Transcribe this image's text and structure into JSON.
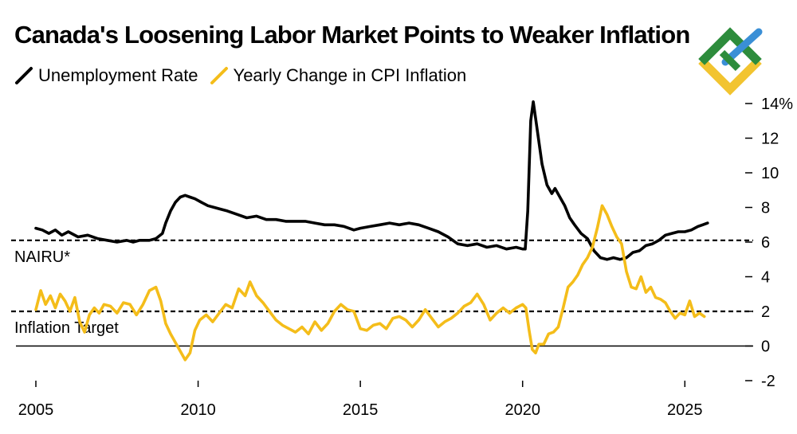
{
  "chart_data": {
    "type": "line",
    "title": "Canada's Loosening Labor Market Points to Weaker Inflation",
    "xlabel": "",
    "ylabel": "",
    "xlim": [
      2005,
      2026
    ],
    "ylim": [
      -2,
      14
    ],
    "x_ticks": [
      "2005",
      "2010",
      "2015",
      "2020",
      "2025"
    ],
    "y_ticks": [
      "14%",
      "12",
      "10",
      "8",
      "6",
      "4",
      "2",
      "0",
      "-2"
    ],
    "legend_position": "top-left",
    "series": [
      {
        "name": "Unemployment Rate",
        "color": "#000000",
        "points": [
          [
            2005.0,
            6.8
          ],
          [
            2005.2,
            6.7
          ],
          [
            2005.4,
            6.5
          ],
          [
            2005.6,
            6.7
          ],
          [
            2005.8,
            6.4
          ],
          [
            2006.0,
            6.6
          ],
          [
            2006.3,
            6.3
          ],
          [
            2006.6,
            6.4
          ],
          [
            2006.9,
            6.2
          ],
          [
            2007.2,
            6.1
          ],
          [
            2007.5,
            6.0
          ],
          [
            2007.8,
            6.1
          ],
          [
            2008.0,
            6.0
          ],
          [
            2008.2,
            6.1
          ],
          [
            2008.5,
            6.1
          ],
          [
            2008.7,
            6.2
          ],
          [
            2008.9,
            6.5
          ],
          [
            2009.0,
            7.1
          ],
          [
            2009.15,
            7.8
          ],
          [
            2009.3,
            8.3
          ],
          [
            2009.45,
            8.6
          ],
          [
            2009.6,
            8.7
          ],
          [
            2009.75,
            8.6
          ],
          [
            2009.9,
            8.5
          ],
          [
            2010.1,
            8.3
          ],
          [
            2010.3,
            8.1
          ],
          [
            2010.5,
            8.0
          ],
          [
            2010.7,
            7.9
          ],
          [
            2010.9,
            7.8
          ],
          [
            2011.2,
            7.6
          ],
          [
            2011.5,
            7.4
          ],
          [
            2011.8,
            7.5
          ],
          [
            2012.1,
            7.3
          ],
          [
            2012.4,
            7.3
          ],
          [
            2012.7,
            7.2
          ],
          [
            2013.0,
            7.2
          ],
          [
            2013.3,
            7.2
          ],
          [
            2013.6,
            7.1
          ],
          [
            2013.9,
            7.0
          ],
          [
            2014.2,
            7.0
          ],
          [
            2014.5,
            6.9
          ],
          [
            2014.8,
            6.7
          ],
          [
            2015.0,
            6.8
          ],
          [
            2015.3,
            6.9
          ],
          [
            2015.6,
            7.0
          ],
          [
            2015.9,
            7.1
          ],
          [
            2016.2,
            7.0
          ],
          [
            2016.5,
            7.1
          ],
          [
            2016.8,
            7.0
          ],
          [
            2017.1,
            6.8
          ],
          [
            2017.4,
            6.6
          ],
          [
            2017.7,
            6.3
          ],
          [
            2018.0,
            5.9
          ],
          [
            2018.3,
            5.8
          ],
          [
            2018.6,
            5.9
          ],
          [
            2018.9,
            5.7
          ],
          [
            2019.2,
            5.8
          ],
          [
            2019.5,
            5.6
          ],
          [
            2019.8,
            5.7
          ],
          [
            2020.0,
            5.6
          ],
          [
            2020.08,
            5.6
          ],
          [
            2020.16,
            7.8
          ],
          [
            2020.25,
            13.0
          ],
          [
            2020.33,
            14.1
          ],
          [
            2020.45,
            12.5
          ],
          [
            2020.6,
            10.5
          ],
          [
            2020.75,
            9.3
          ],
          [
            2020.9,
            8.8
          ],
          [
            2021.0,
            9.1
          ],
          [
            2021.15,
            8.6
          ],
          [
            2021.3,
            8.1
          ],
          [
            2021.45,
            7.4
          ],
          [
            2021.6,
            7.0
          ],
          [
            2021.8,
            6.5
          ],
          [
            2022.0,
            6.2
          ],
          [
            2022.2,
            5.5
          ],
          [
            2022.4,
            5.1
          ],
          [
            2022.6,
            5.0
          ],
          [
            2022.8,
            5.1
          ],
          [
            2023.0,
            5.0
          ],
          [
            2023.2,
            5.1
          ],
          [
            2023.4,
            5.4
          ],
          [
            2023.6,
            5.5
          ],
          [
            2023.8,
            5.8
          ],
          [
            2024.0,
            5.9
          ],
          [
            2024.2,
            6.1
          ],
          [
            2024.4,
            6.4
          ],
          [
            2024.6,
            6.5
          ],
          [
            2024.8,
            6.6
          ],
          [
            2025.0,
            6.6
          ],
          [
            2025.2,
            6.7
          ],
          [
            2025.4,
            6.9
          ],
          [
            2025.55,
            7.0
          ],
          [
            2025.7,
            7.1
          ]
        ]
      },
      {
        "name": "Yearly Change in CPI Inflation",
        "color": "#f4bd1a",
        "points": [
          [
            2005.0,
            2.1
          ],
          [
            2005.15,
            3.2
          ],
          [
            2005.3,
            2.4
          ],
          [
            2005.45,
            2.9
          ],
          [
            2005.6,
            2.2
          ],
          [
            2005.75,
            3.0
          ],
          [
            2005.9,
            2.6
          ],
          [
            2006.05,
            2.0
          ],
          [
            2006.2,
            2.8
          ],
          [
            2006.35,
            1.4
          ],
          [
            2006.5,
            0.8
          ],
          [
            2006.65,
            1.8
          ],
          [
            2006.8,
            2.2
          ],
          [
            2006.95,
            1.9
          ],
          [
            2007.1,
            2.4
          ],
          [
            2007.3,
            2.3
          ],
          [
            2007.5,
            1.9
          ],
          [
            2007.7,
            2.5
          ],
          [
            2007.9,
            2.4
          ],
          [
            2008.1,
            1.8
          ],
          [
            2008.3,
            2.4
          ],
          [
            2008.5,
            3.2
          ],
          [
            2008.7,
            3.4
          ],
          [
            2008.85,
            2.6
          ],
          [
            2009.0,
            1.3
          ],
          [
            2009.15,
            0.7
          ],
          [
            2009.3,
            0.2
          ],
          [
            2009.45,
            -0.3
          ],
          [
            2009.6,
            -0.8
          ],
          [
            2009.75,
            -0.4
          ],
          [
            2009.9,
            0.9
          ],
          [
            2010.05,
            1.5
          ],
          [
            2010.25,
            1.8
          ],
          [
            2010.45,
            1.4
          ],
          [
            2010.65,
            1.9
          ],
          [
            2010.85,
            2.4
          ],
          [
            2011.05,
            2.2
          ],
          [
            2011.25,
            3.3
          ],
          [
            2011.45,
            2.9
          ],
          [
            2011.6,
            3.7
          ],
          [
            2011.8,
            2.9
          ],
          [
            2012.0,
            2.5
          ],
          [
            2012.2,
            2.0
          ],
          [
            2012.4,
            1.5
          ],
          [
            2012.6,
            1.2
          ],
          [
            2012.8,
            1.0
          ],
          [
            2013.0,
            0.8
          ],
          [
            2013.2,
            1.1
          ],
          [
            2013.4,
            0.7
          ],
          [
            2013.6,
            1.4
          ],
          [
            2013.8,
            0.9
          ],
          [
            2014.0,
            1.3
          ],
          [
            2014.2,
            2.0
          ],
          [
            2014.4,
            2.4
          ],
          [
            2014.6,
            2.1
          ],
          [
            2014.8,
            2.0
          ],
          [
            2015.0,
            1.0
          ],
          [
            2015.2,
            0.9
          ],
          [
            2015.4,
            1.2
          ],
          [
            2015.6,
            1.3
          ],
          [
            2015.8,
            1.0
          ],
          [
            2016.0,
            1.6
          ],
          [
            2016.2,
            1.7
          ],
          [
            2016.4,
            1.5
          ],
          [
            2016.6,
            1.1
          ],
          [
            2016.8,
            1.5
          ],
          [
            2017.0,
            2.1
          ],
          [
            2017.2,
            1.6
          ],
          [
            2017.4,
            1.1
          ],
          [
            2017.6,
            1.4
          ],
          [
            2017.8,
            1.6
          ],
          [
            2018.0,
            1.9
          ],
          [
            2018.2,
            2.3
          ],
          [
            2018.4,
            2.5
          ],
          [
            2018.6,
            3.0
          ],
          [
            2018.8,
            2.4
          ],
          [
            2019.0,
            1.5
          ],
          [
            2019.2,
            1.9
          ],
          [
            2019.4,
            2.2
          ],
          [
            2019.6,
            1.9
          ],
          [
            2019.8,
            2.2
          ],
          [
            2020.0,
            2.4
          ],
          [
            2020.1,
            2.2
          ],
          [
            2020.2,
            0.9
          ],
          [
            2020.3,
            -0.2
          ],
          [
            2020.4,
            -0.4
          ],
          [
            2020.5,
            0.1
          ],
          [
            2020.65,
            0.1
          ],
          [
            2020.8,
            0.7
          ],
          [
            2020.95,
            0.8
          ],
          [
            2021.1,
            1.1
          ],
          [
            2021.25,
            2.2
          ],
          [
            2021.4,
            3.4
          ],
          [
            2021.55,
            3.7
          ],
          [
            2021.7,
            4.1
          ],
          [
            2021.85,
            4.7
          ],
          [
            2022.0,
            5.1
          ],
          [
            2022.15,
            5.7
          ],
          [
            2022.3,
            6.8
          ],
          [
            2022.45,
            8.1
          ],
          [
            2022.6,
            7.6
          ],
          [
            2022.75,
            6.9
          ],
          [
            2022.9,
            6.3
          ],
          [
            2023.05,
            5.9
          ],
          [
            2023.2,
            4.3
          ],
          [
            2023.35,
            3.4
          ],
          [
            2023.5,
            3.3
          ],
          [
            2023.65,
            4.0
          ],
          [
            2023.8,
            3.1
          ],
          [
            2023.95,
            3.4
          ],
          [
            2024.1,
            2.8
          ],
          [
            2024.25,
            2.7
          ],
          [
            2024.4,
            2.5
          ],
          [
            2024.55,
            2.0
          ],
          [
            2024.7,
            1.6
          ],
          [
            2024.85,
            1.9
          ],
          [
            2025.0,
            1.8
          ],
          [
            2025.15,
            2.6
          ],
          [
            2025.3,
            1.7
          ],
          [
            2025.45,
            1.9
          ],
          [
            2025.6,
            1.7
          ]
        ]
      }
    ],
    "reference_lines": [
      {
        "label": "NAIRU*",
        "value": 6.1,
        "style": "dashed"
      },
      {
        "label": "Inflation Target",
        "value": 2.0,
        "style": "dashed"
      }
    ]
  }
}
